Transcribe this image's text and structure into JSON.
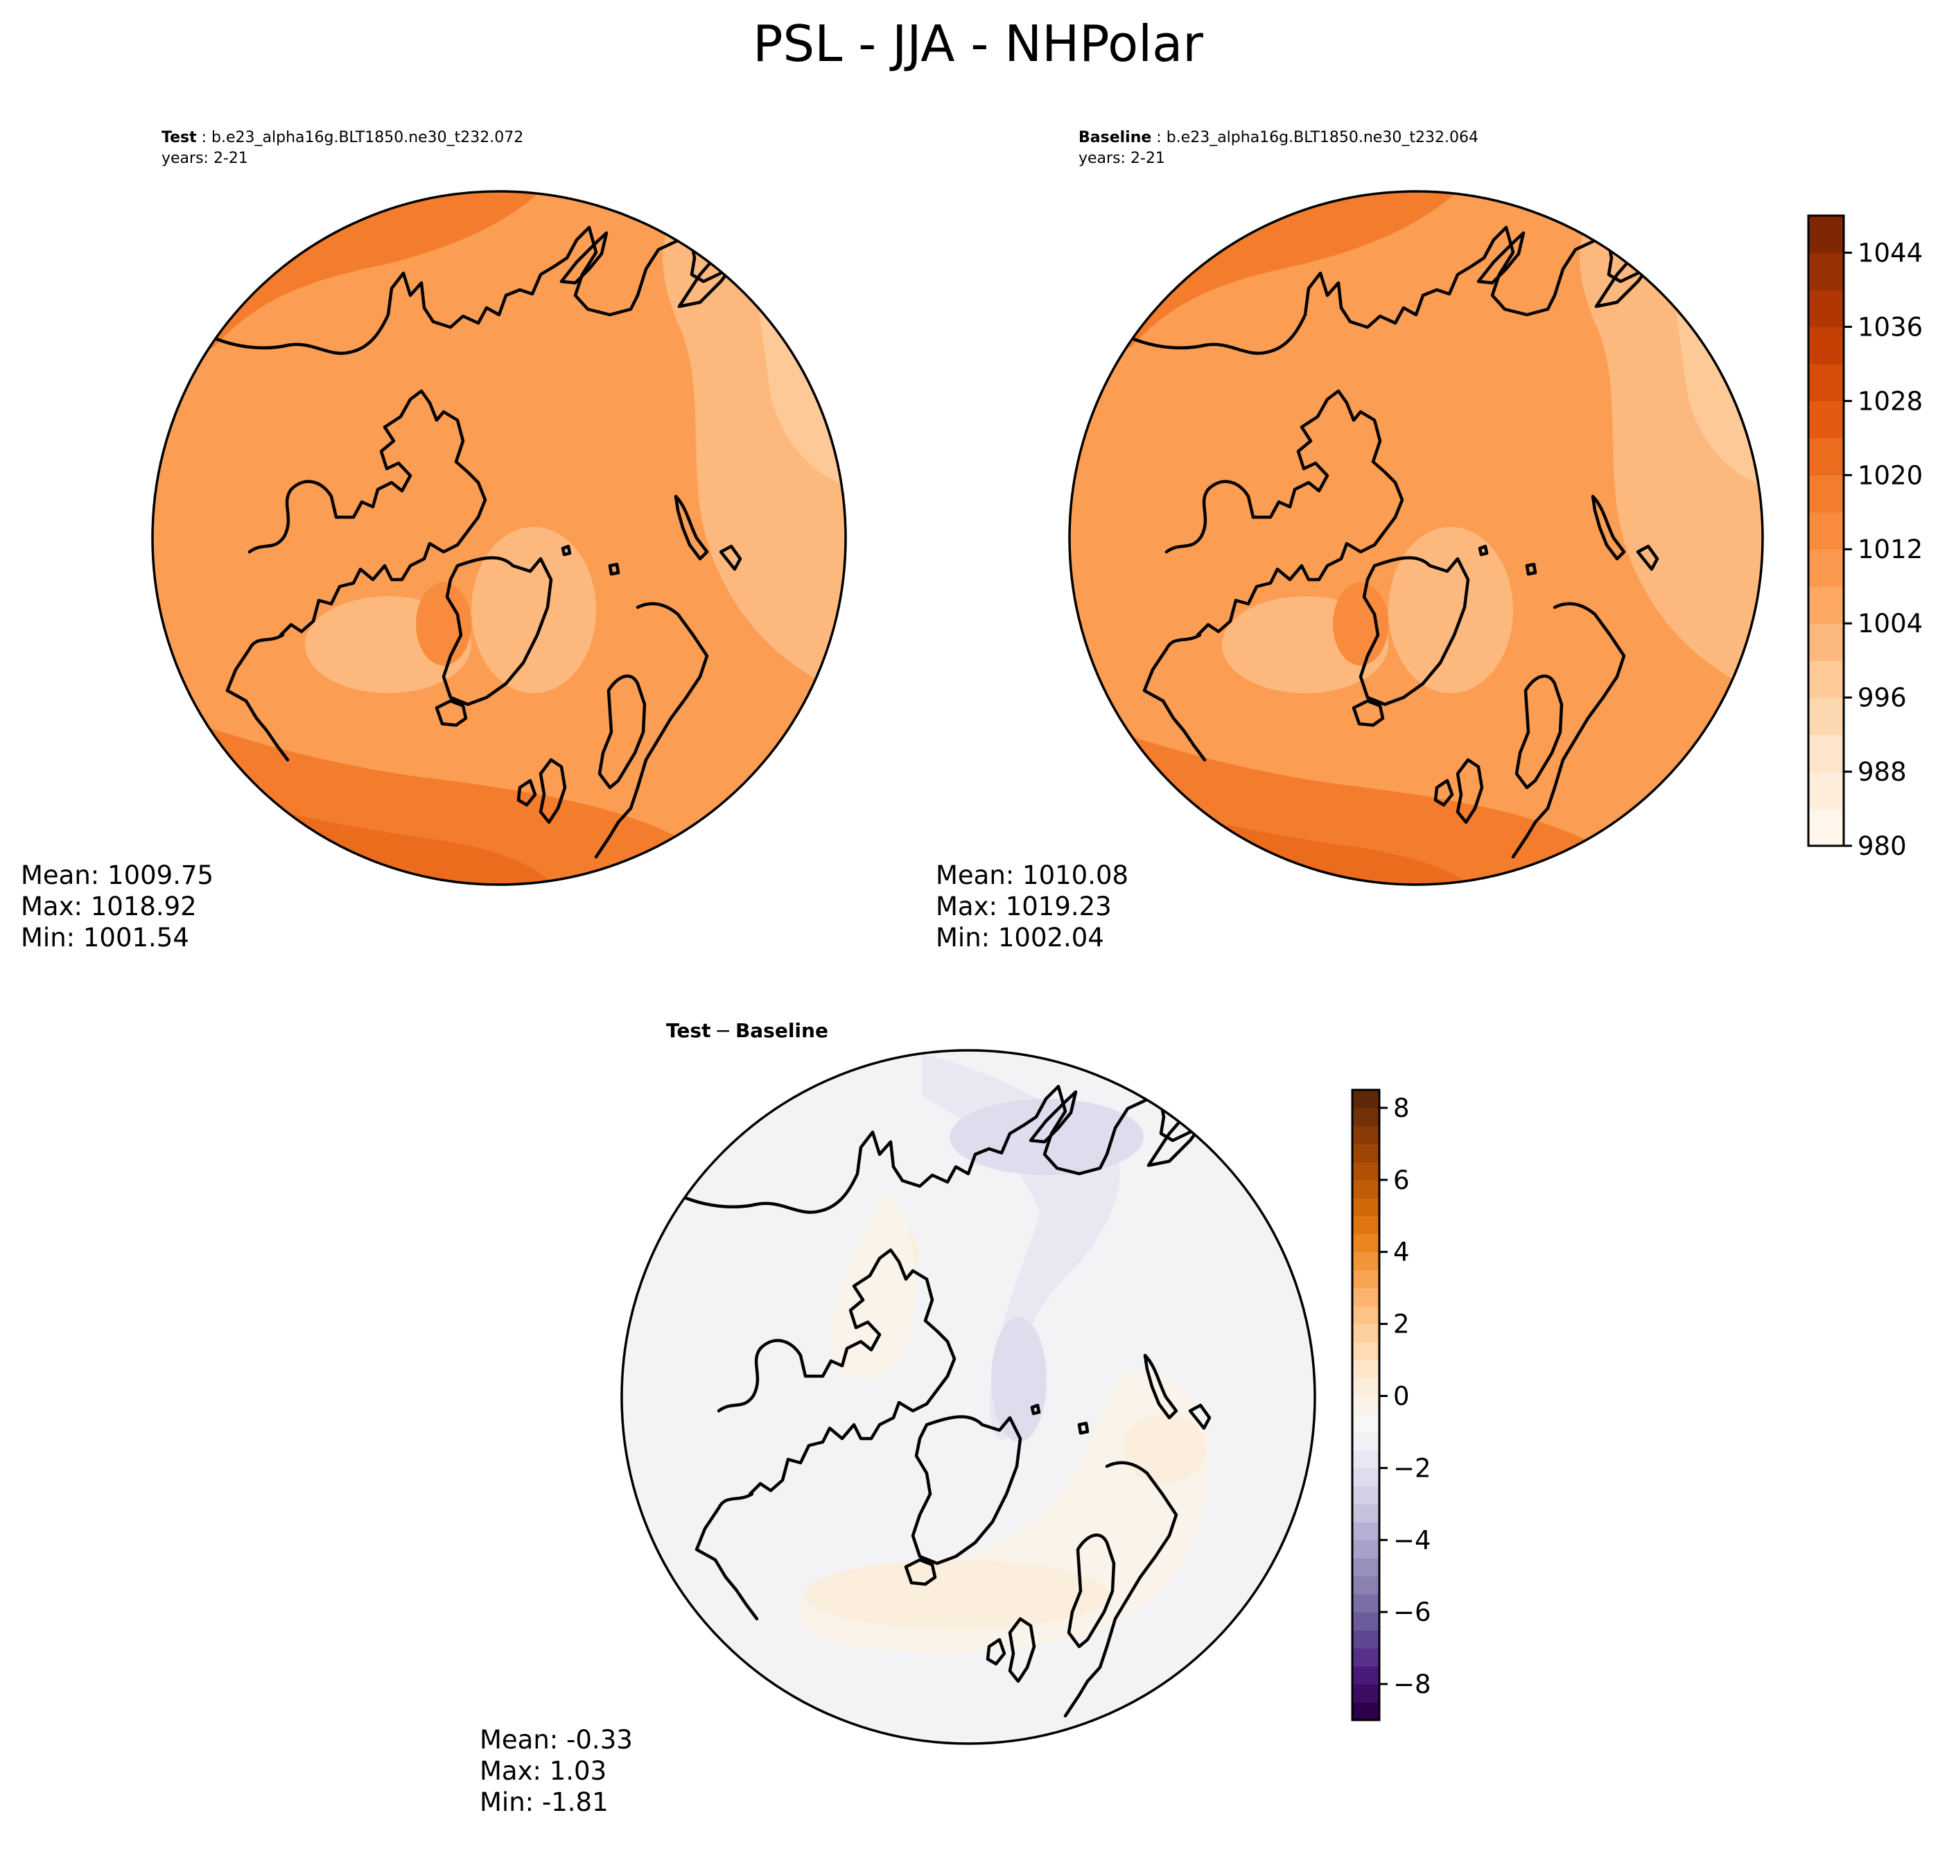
{
  "figure": {
    "title": "PSL - JJA - NHPolar"
  },
  "panels": [
    {
      "id": "test",
      "label": "Test",
      "case": "b.e23_alpha16g.BLT1850.ne30_t232.072",
      "years": "years: 2-21",
      "stats": {
        "mean": "Mean: 1009.75",
        "max": "Max: 1018.92",
        "min": "Min: 1001.54"
      }
    },
    {
      "id": "baseline",
      "label": "Baseline",
      "case": "b.e23_alpha16g.BLT1850.ne30_t232.064",
      "years": "years: 2-21",
      "stats": {
        "mean": "Mean: 1010.08",
        "max": "Max: 1019.23",
        "min": "Min: 1002.04"
      }
    },
    {
      "id": "diff",
      "label_a": "Test",
      "label_op": "−",
      "label_b": "Baseline",
      "stats": {
        "mean": "Mean: -0.33",
        "max": "Max:  1.03",
        "min": "Min: -1.81"
      }
    }
  ],
  "colorbars": {
    "absolute": {
      "colormap": "Oranges",
      "range": [
        980,
        1048
      ],
      "ticks": [
        "1044",
        "1036",
        "1028",
        "1020",
        "1012",
        "1004",
        "996",
        "988",
        "980"
      ],
      "tick_values": [
        1044,
        1036,
        1028,
        1020,
        1012,
        1004,
        996,
        988,
        980
      ],
      "levels": 17,
      "colors": [
        "#fff5eb",
        "#feeddb",
        "#fee4c8",
        "#fdd7b0",
        "#fdc997",
        "#fdb97d",
        "#fda964",
        "#fd994e",
        "#f98b3e",
        "#f37c2d",
        "#ec6c1e",
        "#e25b10",
        "#d64d07",
        "#c54002",
        "#b03703",
        "#983003",
        "#7f2704"
      ]
    },
    "difference": {
      "colormap": "PuOr_r",
      "range": [
        -9,
        8.5
      ],
      "ticks": [
        "8",
        "6",
        "4",
        "2",
        "0",
        "−2",
        "−4",
        "−6",
        "−8"
      ],
      "tick_values": [
        8,
        6,
        4,
        2,
        0,
        -2,
        -4,
        -6,
        -8
      ],
      "levels": 35,
      "colors": [
        "#2d004b",
        "#3b0d63",
        "#4a1a7b",
        "#56308b",
        "#614693",
        "#6c5c9c",
        "#7b6ea7",
        "#8a80b2",
        "#998fbd",
        "#a8a1c9",
        "#b6b1d4",
        "#c5c2de",
        "#d2d0e6",
        "#dedded",
        "#e9e8f2",
        "#f2f1f5",
        "#f7f7f7",
        "#f9f3ea",
        "#fbeedc",
        "#fde6ca",
        "#fedbb4",
        "#fdcf9c",
        "#fdc286",
        "#fbb36e",
        "#f7a453",
        "#f29438",
        "#ea8520",
        "#df760f",
        "#d16807",
        "#c25b05",
        "#b05004",
        "#9c4504",
        "#883b06",
        "#743107",
        "#5f2808"
      ]
    }
  },
  "map_fill": {
    "test_base": "#fb9d52",
    "baseline_base": "#fb9d52",
    "diff_base": "#f3f3f6",
    "coastline": "#000000"
  }
}
